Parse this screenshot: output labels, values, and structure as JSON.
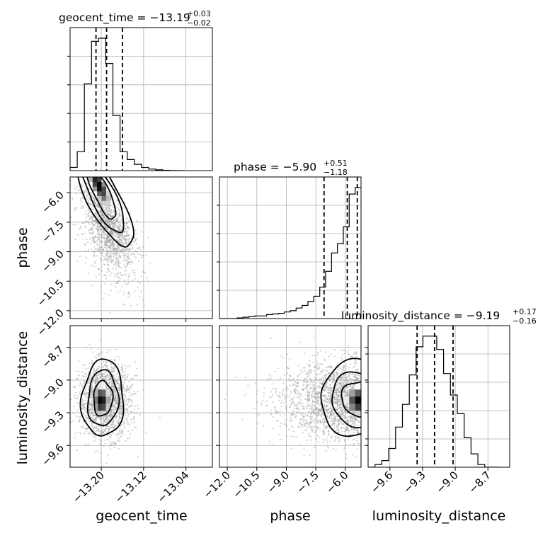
{
  "chart_data": {
    "type": "corner",
    "parameters": [
      "geocent_time",
      "phase",
      "luminosity_distance"
    ],
    "titles": [
      {
        "name": "geocent_time",
        "median": "−13.19",
        "plus": "+0.03",
        "minus": "−0.02"
      },
      {
        "name": "phase",
        "median": "−5.90",
        "plus": "+0.51",
        "minus": "−1.18"
      },
      {
        "name": "luminosity_distance",
        "median": "−9.19",
        "plus": "+0.17",
        "minus": "−0.16"
      }
    ],
    "ranges": {
      "geocent_time": [
        -13.259,
        -12.99
      ],
      "phase": [
        -12.4,
        -5.2
      ],
      "luminosity_distance": [
        -9.8,
        -8.5
      ]
    },
    "xticks": {
      "geocent_time": [
        {
          "v": -13.2,
          "label": "−13.20"
        },
        {
          "v": -13.12,
          "label": "−13.12"
        },
        {
          "v": -13.04,
          "label": "−13.04"
        }
      ],
      "phase": [
        {
          "v": -12.0,
          "label": "−12.0"
        },
        {
          "v": -10.5,
          "label": "−10.5"
        },
        {
          "v": -9.0,
          "label": "−9.0"
        },
        {
          "v": -7.5,
          "label": "−7.5"
        },
        {
          "v": -6.0,
          "label": "−6.0"
        }
      ],
      "luminosity_distance": [
        {
          "v": -9.6,
          "label": "−9.6"
        },
        {
          "v": -9.3,
          "label": "−9.3"
        },
        {
          "v": -9.0,
          "label": "−9.0"
        },
        {
          "v": -8.7,
          "label": "−8.7"
        }
      ]
    },
    "yticks": {
      "phase": [
        {
          "v": -6.0,
          "label": "−6.0"
        },
        {
          "v": -7.5,
          "label": "−7.5"
        },
        {
          "v": -9.0,
          "label": "−9.0"
        },
        {
          "v": -10.5,
          "label": "−10.5"
        },
        {
          "v": -12.0,
          "label": "−12.0"
        }
      ],
      "luminosity_distance": [
        {
          "v": -8.7,
          "label": "−8.7"
        },
        {
          "v": -9.0,
          "label": "−9.0"
        },
        {
          "v": -9.3,
          "label": "−9.3"
        },
        {
          "v": -9.6,
          "label": "−9.6"
        }
      ]
    },
    "quantiles": {
      "geocent_time": [
        -13.21,
        -13.19,
        -13.16
      ],
      "phase": [
        -7.08,
        -5.9,
        -5.39
      ],
      "luminosity_distance": [
        -9.35,
        -9.19,
        -9.02
      ]
    },
    "hist_geocent_time": {
      "edges": [
        -13.259,
        -13.2455,
        -13.232,
        -13.2185,
        -13.205,
        -13.1915,
        -13.178,
        -13.1645,
        -13.151,
        -13.1375,
        -13.124,
        -13.1105,
        -13.097,
        -13.0835,
        -13.07,
        -13.0565,
        -13.043
      ],
      "counts": [
        2,
        12,
        55,
        82,
        84,
        68,
        35,
        12,
        7,
        4,
        2,
        1,
        0.5,
        0.2,
        0.1,
        0
      ]
    },
    "hist_phase": {
      "edges": [
        -12.4,
        -12.1,
        -11.8,
        -11.5,
        -11.2,
        -10.9,
        -10.6,
        -10.3,
        -10.0,
        -9.7,
        -9.4,
        -9.1,
        -8.8,
        -8.5,
        -8.2,
        -7.9,
        -7.6,
        -7.3,
        -7.0,
        -6.7,
        -6.4,
        -6.1,
        -5.8,
        -5.5,
        -5.2
      ],
      "counts": [
        0,
        0,
        0,
        0.5,
        1,
        1.5,
        2,
        2,
        3,
        3.5,
        4,
        5,
        6,
        8,
        10,
        13,
        17,
        24,
        36,
        50,
        57,
        70,
        95,
        100
      ]
    },
    "hist_luminosity_distance": {
      "edges": [
        -9.8,
        -9.737,
        -9.674,
        -9.611,
        -9.548,
        -9.485,
        -9.422,
        -9.359,
        -9.296,
        -9.233,
        -9.17,
        -9.107,
        -9.044,
        -8.981,
        -8.918,
        -8.855,
        -8.792,
        -8.729,
        -8.666,
        -8.603
      ],
      "counts": [
        0,
        2,
        5,
        14,
        30,
        47,
        69,
        90,
        98,
        98,
        88,
        70,
        54,
        40,
        22,
        10,
        2,
        0,
        0
      ]
    }
  }
}
